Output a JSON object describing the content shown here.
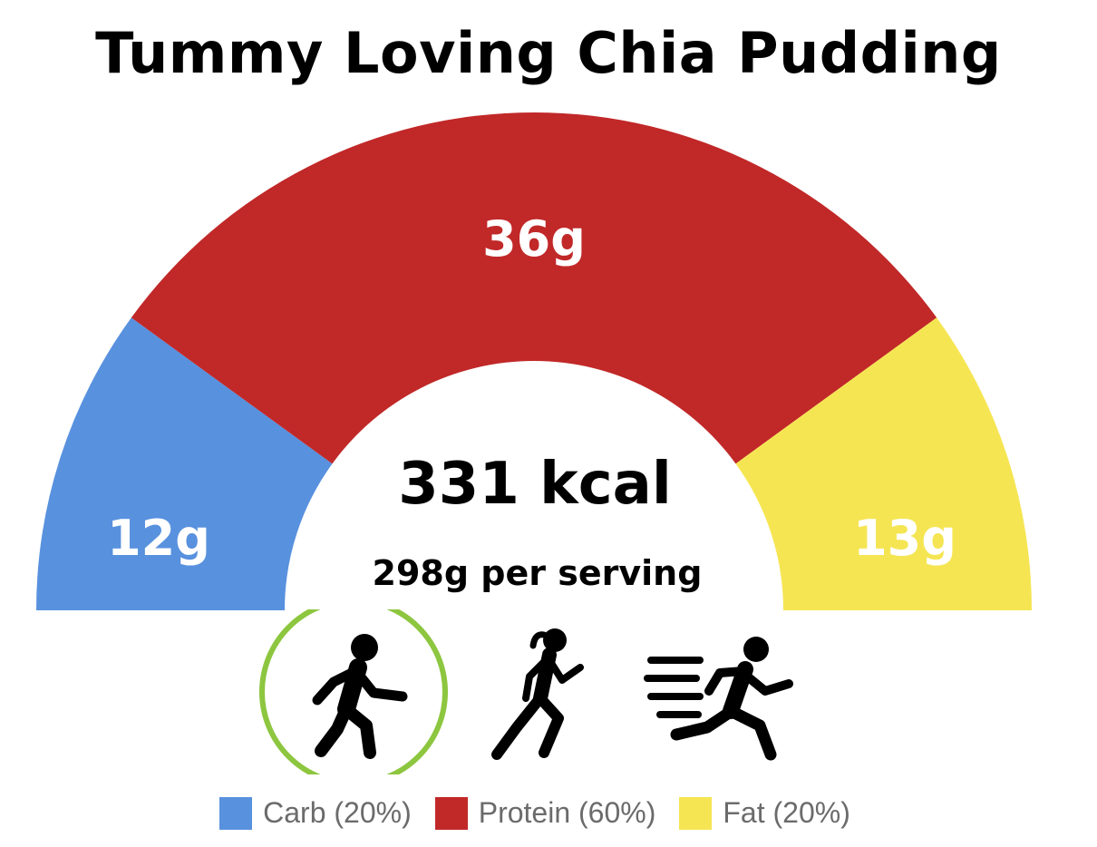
{
  "chart_data": {
    "type": "pie",
    "title": "Tummy Loving Chia Pudding",
    "center_text": "331 kcal",
    "subtitle": "298g per serving",
    "slices": [
      {
        "name": "Carb (20%)",
        "grams_label": "12g",
        "percent": 20,
        "color": "#5891de"
      },
      {
        "name": "Protein (60%)",
        "grams_label": "36g",
        "percent": 60,
        "color": "#c12828"
      },
      {
        "name": "Fat (20%)",
        "grams_label": "13g",
        "percent": 20,
        "color": "#f5e553"
      }
    ],
    "legend_position": "bottom"
  },
  "activities": [
    {
      "icon": "walking-person-icon",
      "selected": true
    },
    {
      "icon": "jogging-woman-icon",
      "selected": false
    },
    {
      "icon": "sprinting-person-icon",
      "selected": false
    }
  ],
  "colors": {
    "selection_ring": "#8dc63f"
  }
}
